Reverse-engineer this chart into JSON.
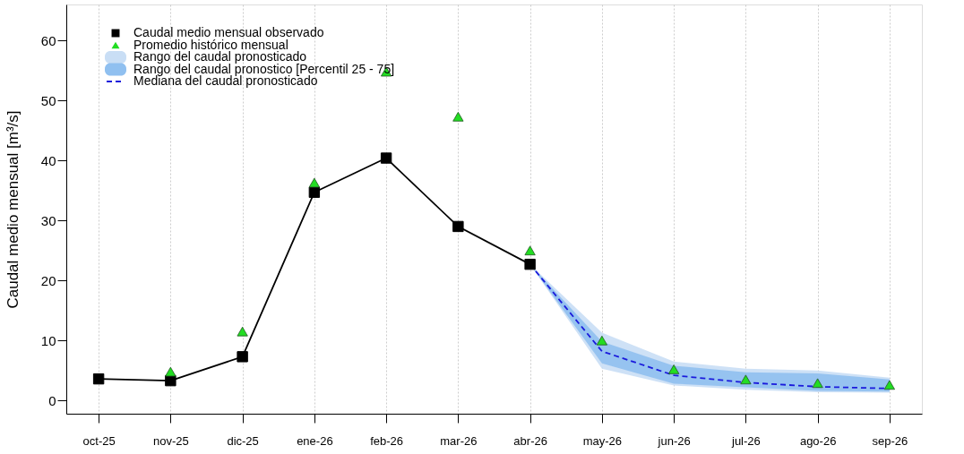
{
  "chart_data": {
    "type": "line",
    "ylabel": "Caudal medio mensual  [m³/s]",
    "categories": [
      "oct-25",
      "nov-25",
      "dic-25",
      "ene-26",
      "feb-26",
      "mar-26",
      "abr-26",
      "may-26",
      "jun-26",
      "jul-26",
      "ago-26",
      "sep-26"
    ],
    "ylim": [
      -2.2,
      66
    ],
    "yticks": [
      0,
      10,
      20,
      30,
      40,
      50,
      60
    ],
    "grid": "x",
    "legend": "top left",
    "series": [
      {
        "name": "Rango del caudal pronosticado",
        "type": "area",
        "color": "#c9def5",
        "values": [
          null,
          null,
          null,
          null,
          null,
          null,
          null,
          null,
          null,
          null,
          null,
          null
        ],
        "lower": [
          null,
          null,
          null,
          null,
          null,
          null,
          22.7,
          5.3,
          2.5,
          1.8,
          1.4,
          1.3
        ],
        "upper": [
          null,
          null,
          null,
          null,
          null,
          null,
          22.7,
          11.3,
          6.5,
          5.3,
          5.0,
          3.8
        ]
      },
      {
        "name": "Rango del caudal pronostico [Percentil 25 - 75]",
        "type": "area",
        "color": "#90c0f0",
        "values": [
          null,
          null,
          null,
          null,
          null,
          null,
          null,
          null,
          null,
          null,
          null,
          null
        ],
        "lower": [
          null,
          null,
          null,
          null,
          null,
          null,
          22.7,
          6.2,
          2.8,
          2.2,
          1.6,
          1.5
        ],
        "upper": [
          null,
          null,
          null,
          null,
          null,
          null,
          22.7,
          9.8,
          5.8,
          4.7,
          4.5,
          3.5
        ]
      },
      {
        "name": "Mediana del caudal pronosticado",
        "color": "#1a1adc",
        "line_style": "dashed",
        "marker": "none",
        "values": [
          null,
          null,
          null,
          null,
          null,
          null,
          22.7,
          8.2,
          4.2,
          3.0,
          2.3,
          2.0
        ]
      },
      {
        "name": "Caudal medio mensual observado",
        "color": "#000000",
        "marker": "square",
        "line_style": "solid",
        "values": [
          3.6,
          3.3,
          7.3,
          34.7,
          40.4,
          29.0,
          22.7,
          null,
          null,
          null,
          null,
          null
        ]
      },
      {
        "name": "Promedio histórico mensual",
        "type": "scatter",
        "color": "#22dd22",
        "marker": "triangle",
        "values": [
          null,
          4.8,
          11.5,
          36.3,
          54.8,
          47.3,
          25.0,
          10.0,
          5.2,
          3.5,
          2.9,
          2.6
        ]
      }
    ]
  }
}
